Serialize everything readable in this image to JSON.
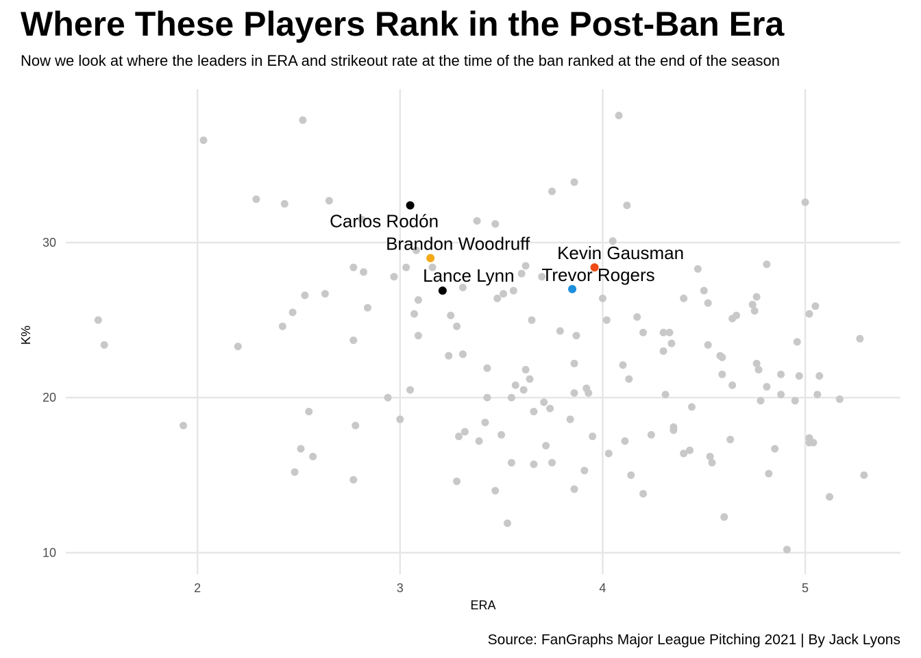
{
  "title": "Where These Players Rank in the Post-Ban Era",
  "subtitle": "Now we look at where the leaders in ERA and strikeout rate at the time of the ban ranked at the end of the season",
  "caption": "Source: FanGraphs Major League Pitching 2021 | By Jack Lyons",
  "colors": {
    "background_points": "#c8c8c8",
    "gridline": "#e6e6e6"
  },
  "chart_data": {
    "type": "scatter",
    "xlabel": "ERA",
    "ylabel": "K%",
    "xlim": [
      1.35,
      5.47
    ],
    "ylim": [
      8.6,
      39.9
    ],
    "xticks": [
      2,
      3,
      4,
      5
    ],
    "yticks": [
      10,
      20,
      30
    ],
    "grid": true,
    "highlighted": [
      {
        "name": "Carlos Rodón",
        "x": 3.05,
        "y": 32.4,
        "color": "#000000"
      },
      {
        "name": "Brandon Woodruff",
        "x": 3.15,
        "y": 29.0,
        "color": "#f4a918"
      },
      {
        "name": "Lance Lynn",
        "x": 3.21,
        "y": 26.9,
        "color": "#000000"
      },
      {
        "name": "Kevin Gausman",
        "x": 3.96,
        "y": 28.4,
        "color": "#ee4b16"
      },
      {
        "name": "Trevor Rogers",
        "x": 3.85,
        "y": 27.0,
        "color": "#1e8fdc"
      }
    ],
    "points": [
      [
        1.51,
        25.0
      ],
      [
        1.54,
        23.4
      ],
      [
        1.93,
        18.2
      ],
      [
        2.03,
        36.6
      ],
      [
        2.2,
        23.3
      ],
      [
        2.29,
        32.8
      ],
      [
        2.42,
        24.6
      ],
      [
        2.43,
        32.5
      ],
      [
        2.47,
        25.5
      ],
      [
        2.48,
        15.2
      ],
      [
        2.51,
        16.7
      ],
      [
        2.52,
        37.9
      ],
      [
        2.53,
        26.6
      ],
      [
        2.55,
        19.1
      ],
      [
        2.57,
        16.2
      ],
      [
        2.63,
        26.7
      ],
      [
        2.65,
        32.7
      ],
      [
        2.77,
        14.7
      ],
      [
        2.77,
        28.4
      ],
      [
        2.77,
        23.7
      ],
      [
        2.78,
        18.2
      ],
      [
        2.81,
        31.5
      ],
      [
        2.82,
        28.1
      ],
      [
        2.84,
        25.8
      ],
      [
        2.94,
        20.0
      ],
      [
        2.97,
        27.8
      ],
      [
        3.0,
        18.6
      ],
      [
        3.03,
        28.4
      ],
      [
        3.05,
        20.5
      ],
      [
        3.07,
        25.4
      ],
      [
        3.08,
        29.5
      ],
      [
        3.09,
        26.3
      ],
      [
        3.09,
        24.0
      ],
      [
        3.16,
        28.4
      ],
      [
        3.24,
        22.7
      ],
      [
        3.25,
        25.3
      ],
      [
        3.28,
        24.6
      ],
      [
        3.28,
        14.6
      ],
      [
        3.29,
        17.5
      ],
      [
        3.31,
        22.8
      ],
      [
        3.31,
        27.1
      ],
      [
        3.32,
        17.8
      ],
      [
        3.38,
        31.4
      ],
      [
        3.39,
        17.2
      ],
      [
        3.42,
        18.4
      ],
      [
        3.43,
        21.9
      ],
      [
        3.43,
        20.0
      ],
      [
        3.47,
        14.0
      ],
      [
        3.47,
        31.2
      ],
      [
        3.48,
        26.4
      ],
      [
        3.5,
        17.6
      ],
      [
        3.51,
        26.7
      ],
      [
        3.53,
        11.9
      ],
      [
        3.55,
        20.0
      ],
      [
        3.55,
        15.8
      ],
      [
        3.56,
        26.9
      ],
      [
        3.57,
        20.8
      ],
      [
        3.6,
        28.0
      ],
      [
        3.61,
        20.5
      ],
      [
        3.62,
        21.8
      ],
      [
        3.62,
        28.5
      ],
      [
        3.64,
        21.2
      ],
      [
        3.65,
        25.0
      ],
      [
        3.66,
        19.1
      ],
      [
        3.66,
        15.7
      ],
      [
        3.7,
        27.8
      ],
      [
        3.71,
        19.7
      ],
      [
        3.72,
        16.9
      ],
      [
        3.74,
        19.3
      ],
      [
        3.75,
        15.8
      ],
      [
        3.75,
        33.3
      ],
      [
        3.79,
        24.3
      ],
      [
        3.84,
        18.6
      ],
      [
        3.86,
        14.1
      ],
      [
        3.86,
        20.3
      ],
      [
        3.86,
        22.2
      ],
      [
        3.86,
        33.9
      ],
      [
        3.87,
        24.0
      ],
      [
        3.91,
        15.3
      ],
      [
        3.92,
        20.6
      ],
      [
        3.93,
        20.3
      ],
      [
        3.95,
        17.5
      ],
      [
        4.0,
        26.4
      ],
      [
        4.02,
        25.0
      ],
      [
        4.03,
        16.4
      ],
      [
        4.05,
        30.1
      ],
      [
        4.08,
        38.2
      ],
      [
        4.1,
        22.1
      ],
      [
        4.11,
        17.2
      ],
      [
        4.12,
        32.4
      ],
      [
        4.13,
        21.2
      ],
      [
        4.14,
        15.0
      ],
      [
        4.17,
        25.2
      ],
      [
        4.2,
        24.2
      ],
      [
        4.2,
        13.8
      ],
      [
        4.24,
        17.6
      ],
      [
        4.3,
        23.0
      ],
      [
        4.3,
        24.2
      ],
      [
        4.31,
        20.2
      ],
      [
        4.33,
        24.2
      ],
      [
        4.34,
        23.5
      ],
      [
        4.35,
        18.1
      ],
      [
        4.35,
        17.9
      ],
      [
        4.4,
        16.4
      ],
      [
        4.4,
        26.4
      ],
      [
        4.43,
        16.6
      ],
      [
        4.44,
        19.4
      ],
      [
        4.47,
        28.3
      ],
      [
        4.5,
        26.9
      ],
      [
        4.52,
        26.1
      ],
      [
        4.52,
        23.4
      ],
      [
        4.53,
        16.2
      ],
      [
        4.54,
        15.8
      ],
      [
        4.58,
        22.7
      ],
      [
        4.59,
        22.6
      ],
      [
        4.59,
        21.5
      ],
      [
        4.6,
        12.3
      ],
      [
        4.63,
        17.3
      ],
      [
        4.64,
        20.8
      ],
      [
        4.64,
        25.1
      ],
      [
        4.66,
        25.3
      ],
      [
        4.74,
        26.0
      ],
      [
        4.75,
        25.6
      ],
      [
        4.76,
        22.2
      ],
      [
        4.76,
        26.5
      ],
      [
        4.77,
        21.8
      ],
      [
        4.78,
        19.8
      ],
      [
        4.81,
        28.6
      ],
      [
        4.81,
        20.7
      ],
      [
        4.82,
        15.1
      ],
      [
        4.85,
        16.7
      ],
      [
        4.88,
        21.5
      ],
      [
        4.88,
        20.2
      ],
      [
        4.91,
        10.2
      ],
      [
        4.95,
        19.8
      ],
      [
        4.96,
        23.6
      ],
      [
        4.97,
        21.4
      ],
      [
        5.0,
        32.6
      ],
      [
        5.02,
        17.4
      ],
      [
        5.02,
        17.1
      ],
      [
        5.02,
        25.4
      ],
      [
        5.04,
        17.1
      ],
      [
        5.05,
        25.9
      ],
      [
        5.06,
        20.2
      ],
      [
        5.07,
        21.4
      ],
      [
        5.12,
        13.6
      ],
      [
        5.17,
        19.9
      ],
      [
        5.27,
        23.8
      ],
      [
        5.29,
        15.0
      ]
    ]
  }
}
